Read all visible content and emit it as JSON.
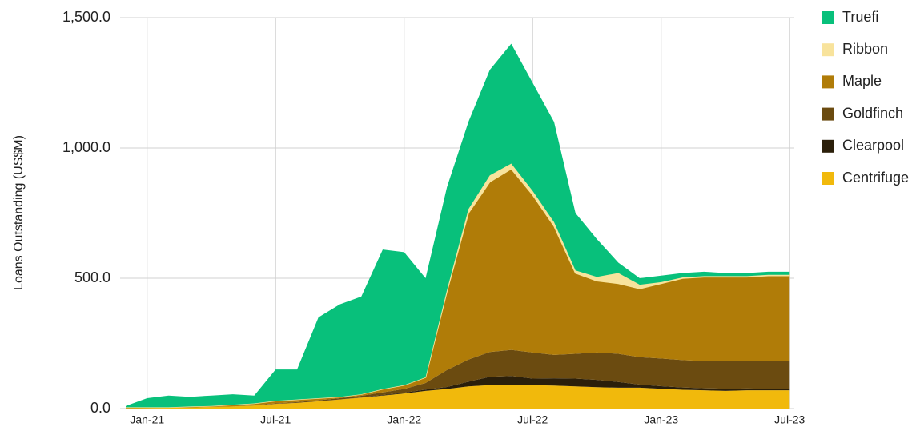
{
  "chart_data": {
    "type": "stacked-area",
    "y_label": "Loans Outstanding (US$M)",
    "categories": [
      null,
      "Jan-21",
      null,
      null,
      null,
      null,
      null,
      "Jul-21",
      null,
      null,
      null,
      null,
      null,
      "Jan-22",
      null,
      null,
      null,
      null,
      null,
      "Jul-22",
      null,
      null,
      null,
      null,
      null,
      "Jan-23",
      null,
      null,
      null,
      null,
      null,
      "Jul-23"
    ],
    "ylim": [
      0,
      1500
    ],
    "yticks": [
      {
        "value": 0,
        "label": "0.0"
      },
      {
        "value": 500,
        "label": "500.0"
      },
      {
        "value": 1000,
        "label": "1,000.0"
      },
      {
        "value": 1500,
        "label": "1,500.0"
      }
    ],
    "grid": true,
    "legend": "right",
    "series": [
      {
        "name": "Truefi",
        "color": "#08c07b",
        "values": [
          5,
          35,
          45,
          37,
          40,
          40,
          30,
          120,
          115,
          310,
          355,
          375,
          535,
          510,
          380,
          395,
          335,
          405,
          460,
          415,
          385,
          220,
          145,
          40,
          25,
          25,
          17,
          17,
          12,
          12,
          12,
          12
        ]
      },
      {
        "name": "Ribbon",
        "color": "#f8e39c",
        "values": [
          0,
          0,
          0,
          0,
          0,
          0,
          0,
          0,
          0,
          0,
          0,
          0,
          0,
          0,
          0,
          5,
          15,
          25,
          20,
          15,
          15,
          10,
          15,
          40,
          15,
          5,
          3,
          3,
          3,
          3,
          3,
          3
        ]
      },
      {
        "name": "Maple",
        "color": "#b07c08",
        "values": [
          4,
          3,
          2,
          4,
          4,
          7,
          7,
          10,
          10,
          8,
          5,
          6,
          13,
          15,
          22,
          302,
          562,
          653,
          695,
          605,
          494,
          310,
          275,
          270,
          263,
          288,
          314,
          323,
          323,
          324,
          328,
          329
        ]
      },
      {
        "name": "Goldfinch",
        "color": "#6b4b10",
        "values": [
          0,
          0,
          0,
          0,
          0,
          0,
          1,
          2,
          3,
          4,
          5,
          6,
          10,
          14,
          25,
          65,
          85,
          95,
          100,
          100,
          90,
          95,
          105,
          108,
          105,
          106,
          105,
          104,
          106,
          104,
          106,
          105
        ]
      },
      {
        "name": "Clearpool",
        "color": "#2b1f0a",
        "values": [
          0,
          0,
          0,
          0,
          0,
          0,
          0,
          0,
          0,
          0,
          0,
          1,
          2,
          3,
          5,
          8,
          18,
          32,
          33,
          25,
          28,
          30,
          28,
          22,
          12,
          10,
          9,
          8,
          8,
          7,
          6,
          6
        ]
      },
      {
        "name": "Centrifuge",
        "color": "#f1b90c",
        "values": [
          1,
          2,
          3,
          4,
          6,
          8,
          12,
          18,
          22,
          28,
          35,
          42,
          50,
          58,
          68,
          75,
          85,
          90,
          92,
          90,
          88,
          85,
          82,
          80,
          80,
          76,
          72,
          70,
          68,
          70,
          70,
          70
        ]
      }
    ]
  }
}
